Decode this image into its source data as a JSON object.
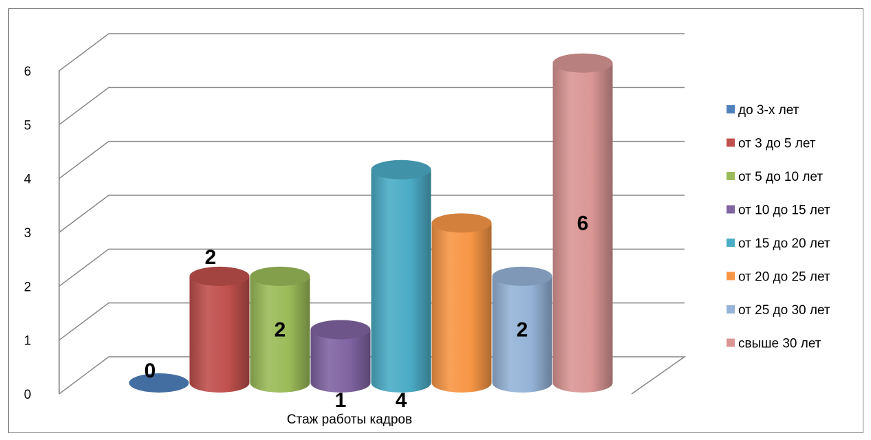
{
  "chart_data": {
    "type": "bar",
    "title": "",
    "xlabel": "Стаж работы кадров",
    "ylabel": "",
    "ylim": [
      0,
      6
    ],
    "yticks": [
      "0",
      "1",
      "2",
      "3",
      "4",
      "5",
      "6"
    ],
    "grid": true,
    "legend_position": "right",
    "series": [
      {
        "name": "до 3-х лет",
        "value": 0,
        "label": "0",
        "color": "#4f81bd"
      },
      {
        "name": "от 3 до 5 лет",
        "value": 2,
        "label": "2",
        "color": "#c0504d"
      },
      {
        "name": "от 5 до 10 лет",
        "value": 2,
        "label": "2",
        "color": "#9bbb59"
      },
      {
        "name": "от 10 до 15 лет",
        "value": 1,
        "label": "1",
        "color": "#8064a2"
      },
      {
        "name": "от 15 до 20 лет",
        "value": 4,
        "label": "4",
        "color": "#4bacc6"
      },
      {
        "name": "от 20 до 25 лет",
        "value": 3,
        "label": "",
        "color": "#f79646"
      },
      {
        "name": "от 25 до 30 лет",
        "value": 2,
        "label": "2",
        "color": "#95b3d7"
      },
      {
        "name": "свыше 30 лет",
        "value": 6,
        "label": "6",
        "color": "#d99694"
      }
    ]
  }
}
